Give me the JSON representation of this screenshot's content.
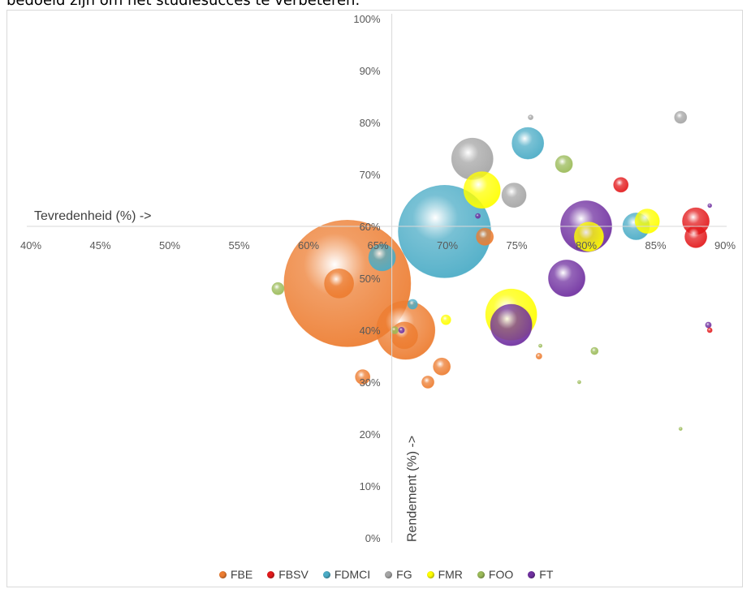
{
  "intro_text": "bedoeld zijn om het studiesucces te verbeteren.",
  "chart_data": {
    "type": "scatter",
    "variant": "bubble",
    "title": "",
    "xlabel": "Tevredenheid (%) ->",
    "ylabel": "Rendement (%) ->",
    "xlim": [
      0.4,
      0.9
    ],
    "ylim": [
      0.0,
      1.0
    ],
    "x_ticks": [
      "40%",
      "45%",
      "50%",
      "55%",
      "60%",
      "65%",
      "70%",
      "75%",
      "80%",
      "85%",
      "90%"
    ],
    "y_ticks": [
      "0%",
      "10%",
      "20%",
      "30%",
      "40%",
      "50%",
      "60%",
      "70%",
      "80%",
      "90%",
      "100%"
    ],
    "axis_crossing": {
      "x": 0.66,
      "y": 0.6
    },
    "grid": false,
    "legend_position": "bottom",
    "series": [
      {
        "name": "FBE",
        "color": "#ed7d31",
        "points": [
          {
            "x": 0.628,
            "y": 0.49,
            "r": 2.6
          },
          {
            "x": 0.622,
            "y": 0.49,
            "r": 0.6
          },
          {
            "x": 0.67,
            "y": 0.4,
            "r": 1.2
          },
          {
            "x": 0.669,
            "y": 0.39,
            "r": 0.55
          },
          {
            "x": 0.696,
            "y": 0.33,
            "r": 0.35
          },
          {
            "x": 0.639,
            "y": 0.31,
            "r": 0.3
          },
          {
            "x": 0.686,
            "y": 0.3,
            "r": 0.25
          },
          {
            "x": 0.727,
            "y": 0.58,
            "r": 0.35
          },
          {
            "x": 0.766,
            "y": 0.35,
            "r": 0.12
          }
        ]
      },
      {
        "name": "FBSV",
        "color": "#e31a1c",
        "points": [
          {
            "x": 0.825,
            "y": 0.68,
            "r": 0.3
          },
          {
            "x": 0.879,
            "y": 0.61,
            "r": 0.55
          },
          {
            "x": 0.879,
            "y": 0.58,
            "r": 0.45
          },
          {
            "x": 0.889,
            "y": 0.4,
            "r": 0.1
          }
        ]
      },
      {
        "name": "FDMCI",
        "color": "#4bacc6",
        "points": [
          {
            "x": 0.698,
            "y": 0.59,
            "r": 1.9
          },
          {
            "x": 0.758,
            "y": 0.76,
            "r": 0.65
          },
          {
            "x": 0.653,
            "y": 0.54,
            "r": 0.55
          },
          {
            "x": 0.836,
            "y": 0.6,
            "r": 0.55
          },
          {
            "x": 0.675,
            "y": 0.45,
            "r": 0.2
          }
        ]
      },
      {
        "name": "FG",
        "color": "#a5a5a5",
        "points": [
          {
            "x": 0.718,
            "y": 0.73,
            "r": 0.85
          },
          {
            "x": 0.748,
            "y": 0.66,
            "r": 0.5
          },
          {
            "x": 0.868,
            "y": 0.81,
            "r": 0.25
          },
          {
            "x": 0.76,
            "y": 0.81,
            "r": 0.1
          }
        ]
      },
      {
        "name": "FMR",
        "color": "#ffff00",
        "points": [
          {
            "x": 0.725,
            "y": 0.67,
            "r": 0.75
          },
          {
            "x": 0.746,
            "y": 0.43,
            "r": 1.05
          },
          {
            "x": 0.802,
            "y": 0.58,
            "r": 0.6
          },
          {
            "x": 0.844,
            "y": 0.61,
            "r": 0.5
          },
          {
            "x": 0.699,
            "y": 0.42,
            "r": 0.2
          }
        ]
      },
      {
        "name": "FOO",
        "color": "#9bbb59",
        "points": [
          {
            "x": 0.578,
            "y": 0.48,
            "r": 0.25
          },
          {
            "x": 0.784,
            "y": 0.72,
            "r": 0.35
          },
          {
            "x": 0.806,
            "y": 0.36,
            "r": 0.15
          },
          {
            "x": 0.662,
            "y": 0.4,
            "r": 0.15
          },
          {
            "x": 0.767,
            "y": 0.37,
            "r": 0.07
          },
          {
            "x": 0.795,
            "y": 0.3,
            "r": 0.06
          },
          {
            "x": 0.868,
            "y": 0.21,
            "r": 0.05
          }
        ]
      },
      {
        "name": "FT",
        "color": "#7030a0",
        "points": [
          {
            "x": 0.8,
            "y": 0.6,
            "r": 1.05
          },
          {
            "x": 0.786,
            "y": 0.5,
            "r": 0.75
          },
          {
            "x": 0.746,
            "y": 0.41,
            "r": 0.85
          },
          {
            "x": 0.667,
            "y": 0.4,
            "r": 0.12
          },
          {
            "x": 0.722,
            "y": 0.62,
            "r": 0.1
          },
          {
            "x": 0.889,
            "y": 0.64,
            "r": 0.08
          },
          {
            "x": 0.888,
            "y": 0.41,
            "r": 0.12
          }
        ]
      }
    ]
  }
}
